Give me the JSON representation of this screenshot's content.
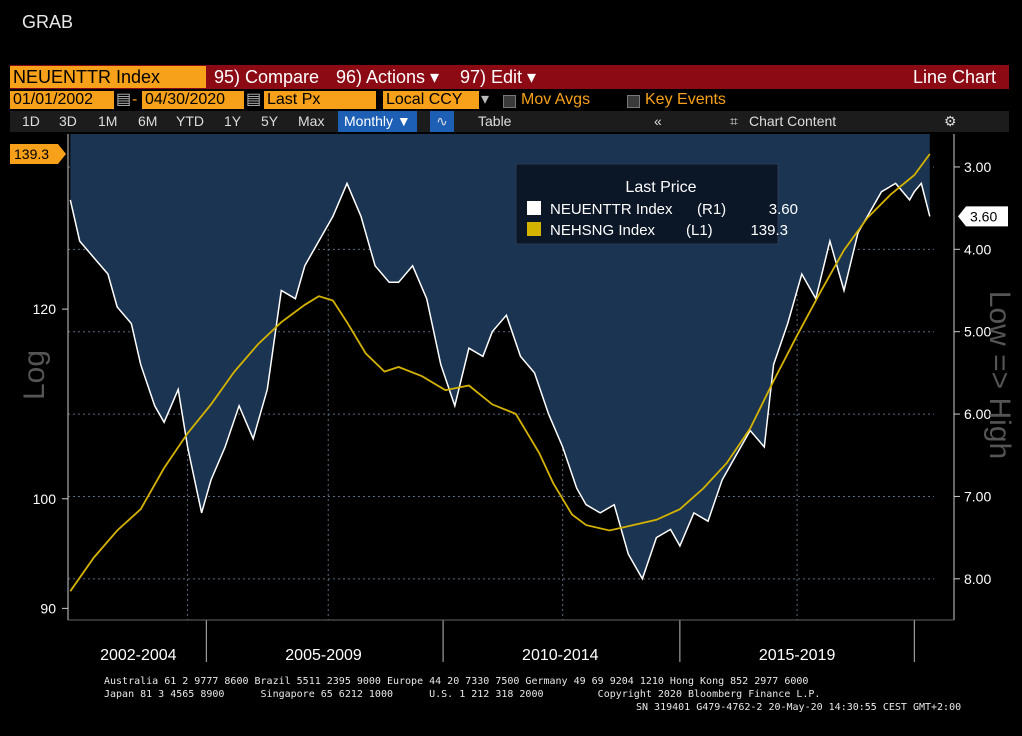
{
  "header": {
    "app_label": "GRAB"
  },
  "toolbar": {
    "ticker": "NEUENTTR Index",
    "compare": "95) Compare",
    "actions": "96) Actions ▾",
    "edit": "97) Edit ▾",
    "chart_type": "Line Chart"
  },
  "params": {
    "start_date": "01/01/2002",
    "end_date": "04/30/2020",
    "field": "Last Px",
    "currency": "Local CCY",
    "mov_avgs": "Mov Avgs",
    "key_events": "Key Events"
  },
  "ranges": {
    "items": [
      "1D",
      "3D",
      "1M",
      "6M",
      "YTD",
      "1Y",
      "5Y",
      "Max"
    ],
    "frequency": "Monthly ▼",
    "table": "Table",
    "chart_content": "Chart Content"
  },
  "colors": {
    "neuenttr": "#ffffff",
    "nehsng": "#d4b200",
    "fill": "#1b3452",
    "accent": "#f7a11a",
    "toolbar_red": "#8b0a14"
  },
  "chart_data": {
    "type": "line",
    "title": "Last Price",
    "x_period_labels": [
      "2002-2004",
      "2005-2009",
      "2010-2014",
      "2015-2019"
    ],
    "left_axis": {
      "label": "Log",
      "scale": "log",
      "ticks": [
        90,
        100,
        120
      ],
      "range": [
        89,
        142
      ],
      "current_label": "139.3"
    },
    "right_axis": {
      "label": "Low => High",
      "inverted": true,
      "ticks": [
        "3.00",
        "4.00",
        "5.00",
        "6.00",
        "7.00",
        "8.00"
      ],
      "range": [
        2.6,
        8.5
      ],
      "current_label": "3.60"
    },
    "legend": [
      {
        "name": "NEUENTTR Index",
        "axis": "(R1)",
        "last": "3.60"
      },
      {
        "name": "NEHSNG Index",
        "axis": "(L1)",
        "last": "139.3"
      }
    ],
    "series": [
      {
        "name": "NEUENTTR Index",
        "axis": "R1",
        "x": [
          2002.0,
          2002.2,
          2002.5,
          2002.8,
          2003.0,
          2003.3,
          2003.5,
          2003.8,
          2004.0,
          2004.3,
          2004.5,
          2004.8,
          2005.0,
          2005.3,
          2005.6,
          2005.9,
          2006.2,
          2006.5,
          2006.8,
          2007.0,
          2007.3,
          2007.6,
          2007.9,
          2008.2,
          2008.5,
          2008.8,
          2009.0,
          2009.3,
          2009.6,
          2009.9,
          2010.2,
          2010.5,
          2010.8,
          2011.0,
          2011.3,
          2011.6,
          2011.9,
          2012.2,
          2012.5,
          2012.8,
          2013.0,
          2013.3,
          2013.6,
          2013.9,
          2014.2,
          2014.5,
          2014.8,
          2015.0,
          2015.3,
          2015.6,
          2015.9,
          2016.2,
          2016.5,
          2016.8,
          2017.0,
          2017.3,
          2017.6,
          2017.9,
          2018.2,
          2018.5,
          2018.8,
          2019.0,
          2019.3,
          2019.6,
          2019.9,
          2020.0,
          2020.15,
          2020.33
        ],
        "values": [
          3.4,
          3.9,
          4.1,
          4.3,
          4.7,
          4.9,
          5.4,
          5.9,
          6.1,
          5.7,
          6.4,
          7.2,
          6.8,
          6.4,
          5.9,
          6.3,
          5.7,
          4.5,
          4.6,
          4.2,
          3.9,
          3.6,
          3.2,
          3.6,
          4.2,
          4.4,
          4.4,
          4.2,
          4.6,
          5.4,
          5.9,
          5.2,
          5.3,
          5.0,
          4.8,
          5.3,
          5.5,
          6.0,
          6.4,
          6.9,
          7.1,
          7.2,
          7.1,
          7.7,
          8.0,
          7.5,
          7.4,
          7.6,
          7.2,
          7.3,
          6.8,
          6.5,
          6.2,
          6.4,
          5.4,
          4.9,
          4.3,
          4.6,
          3.9,
          4.5,
          3.8,
          3.6,
          3.3,
          3.2,
          3.4,
          3.3,
          3.2,
          3.6
        ]
      },
      {
        "name": "NEHSNG Index",
        "axis": "L1",
        "x": [
          2002.0,
          2002.5,
          2003.0,
          2003.5,
          2004.0,
          2004.5,
          2005.0,
          2005.5,
          2006.0,
          2006.5,
          2007.0,
          2007.3,
          2007.6,
          2007.9,
          2008.3,
          2008.7,
          2009.0,
          2009.5,
          2010.0,
          2010.5,
          2011.0,
          2011.5,
          2012.0,
          2012.3,
          2012.7,
          2013.0,
          2013.5,
          2014.0,
          2014.5,
          2015.0,
          2015.5,
          2016.0,
          2016.5,
          2017.0,
          2017.5,
          2018.0,
          2018.5,
          2019.0,
          2019.5,
          2020.0,
          2020.33
        ],
        "values": [
          91.5,
          94.5,
          97.0,
          99.0,
          103.0,
          106.5,
          109.5,
          113.0,
          116.0,
          118.5,
          120.5,
          121.5,
          121.0,
          118.5,
          115.0,
          113.0,
          113.5,
          112.5,
          111.0,
          111.5,
          109.5,
          108.5,
          104.5,
          101.5,
          98.5,
          97.5,
          97.0,
          97.5,
          98.0,
          99.0,
          101.0,
          103.5,
          107.0,
          112.0,
          117.0,
          122.0,
          127.0,
          131.0,
          134.0,
          136.5,
          139.3
        ]
      }
    ]
  },
  "footer": {
    "line1": "Australia 61 2 9777 8600 Brazil 5511 2395 9000 Europe 44 20 7330 7500 Germany 49 69 9204 1210 Hong Kong 852 2977 6000",
    "line2": "Japan 81 3 4565 8900      Singapore 65 6212 1000      U.S. 1 212 318 2000         Copyright 2020 Bloomberg Finance L.P.",
    "line3": "SN 319401 G479-4762-2 20-May-20 14:30:55 CEST GMT+2:00"
  }
}
